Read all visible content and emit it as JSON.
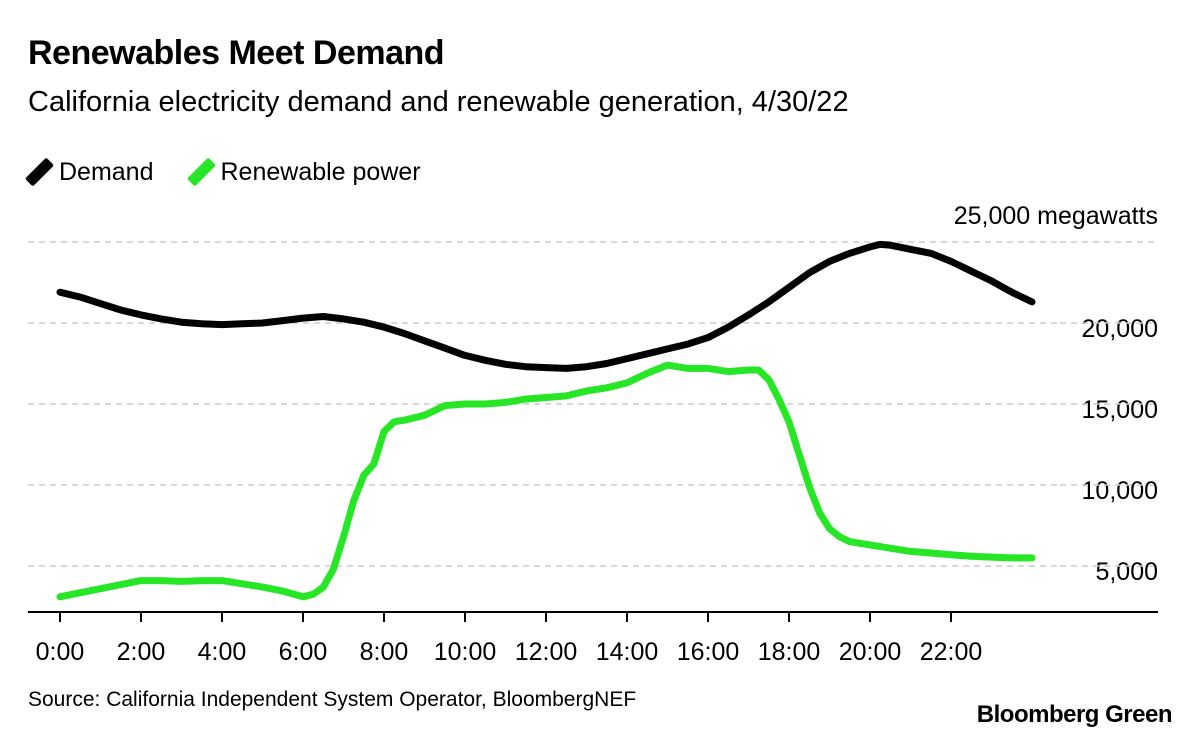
{
  "header": {
    "title": "Renewables Meet Demand",
    "subtitle": "California electricity demand and renewable generation, 4/30/22"
  },
  "legend": [
    {
      "label": "Demand",
      "color": "#000000"
    },
    {
      "label": "Renewable power",
      "color": "#26e626"
    }
  ],
  "footer": {
    "source": "Source: California Independent System Operator, BloombergNEF",
    "brand": "Bloomberg Green"
  },
  "chart_data": {
    "type": "line",
    "title": "Renewables Meet Demand",
    "subtitle": "California electricity demand and renewable generation, 4/30/22",
    "x_range_hours": [
      0,
      24
    ],
    "x_ticks": [
      "0:00",
      "2:00",
      "4:00",
      "6:00",
      "8:00",
      "10:00",
      "12:00",
      "14:00",
      "16:00",
      "18:00",
      "20:00",
      "22:00"
    ],
    "y_ticks": [
      {
        "value": 25000,
        "label": "25,000 megawatts"
      },
      {
        "value": 20000,
        "label": "20,000"
      },
      {
        "value": 15000,
        "label": "15,000"
      },
      {
        "value": 10000,
        "label": "10,000"
      },
      {
        "value": 5000,
        "label": "5,000"
      }
    ],
    "ylim": [
      2200,
      25500
    ],
    "grid": true,
    "legend_position": "top-left",
    "series": [
      {
        "name": "Demand",
        "color": "#000000",
        "hours": [
          0,
          0.5,
          1,
          1.5,
          2,
          2.5,
          3,
          3.5,
          4,
          4.5,
          5,
          5.5,
          6,
          6.5,
          7,
          7.5,
          8,
          8.5,
          9,
          9.5,
          10,
          10.5,
          11,
          11.5,
          12,
          12.5,
          13,
          13.5,
          14,
          14.5,
          15,
          15.5,
          16,
          16.5,
          17,
          17.5,
          18,
          18.5,
          19,
          19.5,
          20,
          20.25,
          20.5,
          21,
          21.5,
          22,
          22.5,
          23,
          23.5,
          24
        ],
        "values": [
          21900,
          21600,
          21200,
          20800,
          20500,
          20250,
          20050,
          19950,
          19900,
          19950,
          20000,
          20150,
          20300,
          20400,
          20250,
          20050,
          19750,
          19350,
          18900,
          18450,
          18000,
          17700,
          17450,
          17300,
          17250,
          17200,
          17300,
          17500,
          17800,
          18100,
          18400,
          18700,
          19100,
          19750,
          20500,
          21300,
          22200,
          23100,
          23800,
          24300,
          24700,
          24850,
          24800,
          24550,
          24300,
          23800,
          23200,
          22600,
          21900,
          21300
        ]
      },
      {
        "name": "Renewable power",
        "color": "#26e626",
        "hours": [
          0,
          0.5,
          1,
          1.5,
          2,
          2.5,
          3,
          3.5,
          4,
          4.5,
          5,
          5.5,
          6,
          6.25,
          6.5,
          6.75,
          7,
          7.25,
          7.5,
          7.75,
          8,
          8.25,
          8.5,
          9,
          9.5,
          10,
          10.5,
          11,
          11.5,
          12,
          12.5,
          13,
          13.5,
          14,
          14.5,
          15,
          15.5,
          16,
          16.5,
          17,
          17.25,
          17.5,
          17.75,
          18,
          18.25,
          18.5,
          18.75,
          19,
          19.25,
          19.5,
          20,
          20.5,
          21,
          21.5,
          22,
          22.5,
          23,
          23.5,
          24
        ],
        "values": [
          3100,
          3350,
          3600,
          3850,
          4100,
          4100,
          4050,
          4100,
          4100,
          3900,
          3700,
          3450,
          3100,
          3250,
          3700,
          4800,
          6800,
          9000,
          10600,
          11300,
          13300,
          13900,
          14000,
          14300,
          14900,
          15000,
          15000,
          15100,
          15300,
          15400,
          15500,
          15800,
          16000,
          16300,
          16900,
          17400,
          17200,
          17200,
          17000,
          17100,
          17100,
          16500,
          15300,
          13900,
          11900,
          9900,
          8300,
          7300,
          6800,
          6500,
          6300,
          6100,
          5900,
          5800,
          5700,
          5600,
          5550,
          5500,
          5500
        ]
      }
    ]
  }
}
